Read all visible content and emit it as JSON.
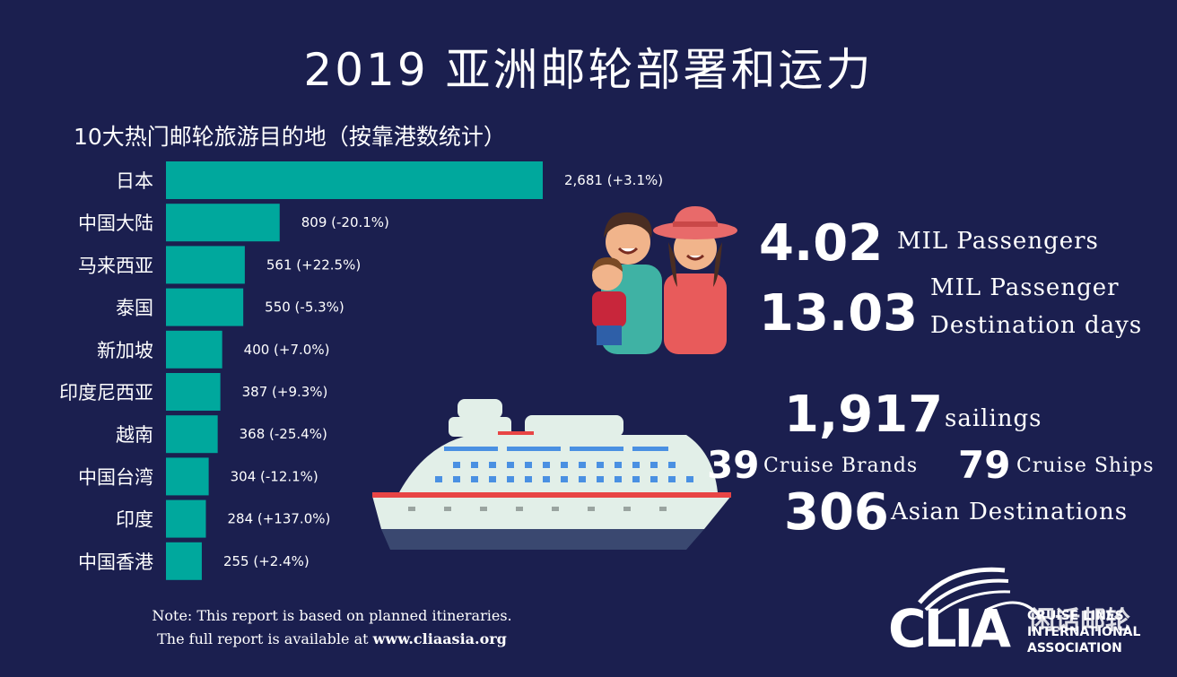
{
  "title": "2019 亚洲邮轮部署和运力",
  "subtitle": "10大热门邮轮旅游目的地（按靠港数统计）",
  "colors": {
    "background": "#1b1f4f",
    "bar": "#00a89d",
    "text": "#ffffff"
  },
  "chart_data": {
    "type": "bar",
    "orientation": "horizontal",
    "title": "10大热门邮轮旅游目的地（按靠港数统计）",
    "categories": [
      "日本",
      "中国大陆",
      "马来西亚",
      "泰国",
      "新加坡",
      "印度尼西亚",
      "越南",
      "中国台湾",
      "印度",
      "中国香港"
    ],
    "values": [
      2681,
      809,
      561,
      550,
      400,
      387,
      368,
      304,
      284,
      255
    ],
    "value_labels": [
      "2,681 (+3.1%)",
      "809 (-20.1%)",
      "561 (+22.5%)",
      "550 (-5.3%)",
      "400 (+7.0%)",
      "387 (+9.3%)",
      "368 (-25.4%)",
      "304 (-12.1%)",
      "284 (+137.0%)",
      "255 (+2.4%)"
    ]
  },
  "stats": {
    "passengers": {
      "value": "4.02",
      "label": "MIL Passengers"
    },
    "destination_days": {
      "value": "13.03",
      "label_line1": "MIL Passenger",
      "label_line2": "Destination days"
    },
    "sailings": {
      "value": "1,917",
      "label": "sailings"
    },
    "brands": {
      "value": "39",
      "label": "Cruise Brands"
    },
    "ships": {
      "value": "79",
      "label": "Cruise Ships"
    },
    "destinations": {
      "value": "306",
      "label": "Asian Destinations"
    }
  },
  "note": {
    "line1": "Note: This report is based on planned itineraries.",
    "line2_prefix": "The full report is available at ",
    "line2_link": "www.cliaasia.org"
  },
  "logo": {
    "text": "CLIA",
    "tagline1": "CRUISE LINES",
    "tagline2": "INTERNATIONAL",
    "tagline3": "ASSOCIATION",
    "watermark": "闲话邮轮"
  }
}
